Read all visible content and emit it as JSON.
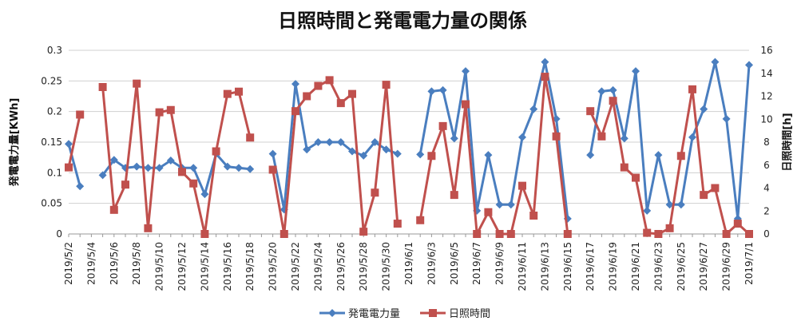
{
  "colors": {
    "primary_series": "#4a7ebf",
    "secondary_series": "#c0504d",
    "grid": "#d0d0d0"
  },
  "chart_data": {
    "type": "line",
    "title": "日照時間と発電電力量の関係",
    "x": [
      "2019/5/2",
      "2019/5/3",
      "2019/5/4",
      "2019/5/5",
      "2019/5/6",
      "2019/5/7",
      "2019/5/8",
      "2019/5/9",
      "2019/5/10",
      "2019/5/11",
      "2019/5/12",
      "2019/5/13",
      "2019/5/14",
      "2019/5/15",
      "2019/5/16",
      "2019/5/17",
      "2019/5/18",
      "2019/5/19",
      "2019/5/20",
      "2019/5/21",
      "2019/5/22",
      "2019/5/23",
      "2019/5/24",
      "2019/5/25",
      "2019/5/26",
      "2019/5/27",
      "2019/5/28",
      "2019/5/29",
      "2019/5/30",
      "2019/5/31",
      "2019/6/1",
      "2019/6/2",
      "2019/6/3",
      "2019/6/4",
      "2019/6/5",
      "2019/6/6",
      "2019/6/7",
      "2019/6/8",
      "2019/6/9",
      "2019/6/10",
      "2019/6/11",
      "2019/6/12",
      "2019/6/13",
      "2019/6/14",
      "2019/6/15",
      "2019/6/16",
      "2019/6/17",
      "2019/6/18",
      "2019/6/19",
      "2019/6/20",
      "2019/6/21",
      "2019/6/22",
      "2019/6/23",
      "2019/6/24",
      "2019/6/25",
      "2019/6/26",
      "2019/6/27",
      "2019/6/28",
      "2019/6/29",
      "2019/6/30",
      "2019/7/1"
    ],
    "x_tick_labels": [
      "2019/5/2",
      "2019/5/4",
      "2019/5/6",
      "2019/5/8",
      "2019/5/10",
      "2019/5/12",
      "2019/5/14",
      "2019/5/16",
      "2019/5/18",
      "2019/5/20",
      "2019/5/22",
      "2019/5/24",
      "2019/5/26",
      "2019/5/28",
      "2019/5/30",
      "2019/6/1",
      "2019/6/3",
      "2019/6/5",
      "2019/6/7",
      "2019/6/9",
      "2019/6/11",
      "2019/6/13",
      "2019/6/15",
      "2019/6/17",
      "2019/6/19",
      "2019/6/21",
      "2019/6/23",
      "2019/6/25",
      "2019/6/27",
      "2019/6/29",
      "2019/7/1"
    ],
    "ylabel": "発電電力量[KWh]",
    "y2label": "日照時間[h]",
    "ylim": [
      0,
      0.3
    ],
    "y_ticks": [
      "0",
      "0.05",
      "0.1",
      "0.15",
      "0.2",
      "0.25",
      "0.3"
    ],
    "y2lim": [
      0,
      16
    ],
    "y2_ticks": [
      "0",
      "2",
      "4",
      "6",
      "8",
      "10",
      "12",
      "14",
      "16"
    ],
    "legend_position": "bottom",
    "series": [
      {
        "name": "発電電力量",
        "axis": "left",
        "marker": "diamond",
        "values": [
          0.147,
          0.078,
          null,
          0.096,
          0.121,
          0.108,
          0.11,
          0.108,
          0.108,
          0.12,
          0.108,
          0.108,
          0.065,
          0.131,
          0.11,
          0.108,
          0.106,
          null,
          0.131,
          0.04,
          0.245,
          0.138,
          0.15,
          0.15,
          0.15,
          0.135,
          0.128,
          0.15,
          0.138,
          0.131,
          null,
          0.13,
          0.233,
          0.235,
          0.156,
          0.266,
          0.038,
          0.129,
          0.048,
          0.048,
          0.158,
          0.204,
          0.281,
          0.188,
          0.025,
          null,
          0.129,
          0.233,
          0.235,
          0.156,
          0.266,
          0.038,
          0.129,
          0.048,
          0.048,
          0.158,
          0.204,
          0.281,
          0.188,
          0.025,
          0.276
        ]
      },
      {
        "name": "日照時間",
        "axis": "right",
        "marker": "square",
        "values": [
          5.8,
          10.4,
          null,
          12.8,
          2.1,
          4.3,
          13.1,
          0.5,
          10.6,
          10.8,
          5.4,
          4.4,
          0.0,
          7.2,
          12.2,
          12.4,
          8.4,
          null,
          5.6,
          0.0,
          10.7,
          12.0,
          12.9,
          13.4,
          11.4,
          12.2,
          0.2,
          3.6,
          13.0,
          0.9,
          null,
          1.2,
          6.8,
          9.4,
          3.4,
          11.3,
          0.0,
          1.9,
          0.0,
          0.0,
          4.2,
          1.6,
          13.7,
          8.5,
          0.0,
          null,
          10.7,
          8.5,
          11.6,
          5.8,
          4.9,
          0.1,
          0.0,
          0.5,
          6.8,
          12.6,
          3.4,
          4.0,
          0.0,
          0.9,
          0.0
        ]
      }
    ]
  }
}
